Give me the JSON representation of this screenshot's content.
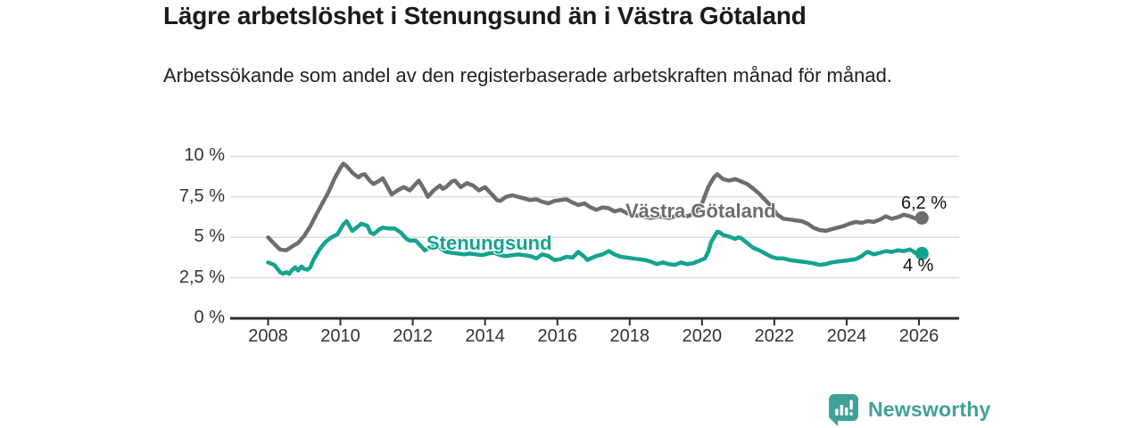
{
  "header": {
    "title": "Lägre arbetslöshet i Stenungsund än i Västra Götaland",
    "subtitle": "Arbetssökande som andel av den registerbaserade arbetskraften månad för månad."
  },
  "chart_data": {
    "type": "line",
    "title": "Lägre arbetslöshet i Stenungsund än i Västra Götaland",
    "xlabel": "",
    "ylabel": "",
    "grid": true,
    "legend_position": "inline-on-line",
    "x_axis": {
      "ticks": [
        2008,
        2010,
        2012,
        2014,
        2016,
        2018,
        2020,
        2022,
        2024,
        2026
      ],
      "unit": "year"
    },
    "y_axis": {
      "range": [
        0,
        10.5
      ],
      "ticks": [
        {
          "value": 0,
          "label": "0 %"
        },
        {
          "value": 2.5,
          "label": "2,5 %"
        },
        {
          "value": 5,
          "label": "5 %"
        },
        {
          "value": 7.5,
          "label": "7,5 %"
        },
        {
          "value": 10,
          "label": "10 %"
        }
      ]
    },
    "colors": {
      "grid": "#d9d9d9",
      "axis": "#2d2d2d",
      "value_label": "#111111"
    },
    "series": [
      {
        "name": "Västra Götaland",
        "color": "#6d6d70",
        "end_label": "6,2 %",
        "end_value": 6.2,
        "points": [
          [
            2008.0,
            5.0
          ],
          [
            2008.17,
            4.6
          ],
          [
            2008.33,
            4.25
          ],
          [
            2008.5,
            4.2
          ],
          [
            2008.67,
            4.45
          ],
          [
            2008.83,
            4.65
          ],
          [
            2009.0,
            5.1
          ],
          [
            2009.17,
            5.7
          ],
          [
            2009.33,
            6.4
          ],
          [
            2009.5,
            7.1
          ],
          [
            2009.67,
            7.8
          ],
          [
            2009.83,
            8.6
          ],
          [
            2010.0,
            9.3
          ],
          [
            2010.08,
            9.55
          ],
          [
            2010.17,
            9.4
          ],
          [
            2010.33,
            9.0
          ],
          [
            2010.5,
            8.7
          ],
          [
            2010.58,
            8.85
          ],
          [
            2010.67,
            8.9
          ],
          [
            2010.83,
            8.45
          ],
          [
            2010.92,
            8.3
          ],
          [
            2011.08,
            8.5
          ],
          [
            2011.17,
            8.65
          ],
          [
            2011.33,
            8.0
          ],
          [
            2011.42,
            7.65
          ],
          [
            2011.58,
            7.9
          ],
          [
            2011.75,
            8.1
          ],
          [
            2011.92,
            7.9
          ],
          [
            2012.08,
            8.3
          ],
          [
            2012.17,
            8.5
          ],
          [
            2012.33,
            7.9
          ],
          [
            2012.42,
            7.5
          ],
          [
            2012.58,
            7.9
          ],
          [
            2012.75,
            8.2
          ],
          [
            2012.83,
            8.0
          ],
          [
            2012.92,
            8.1
          ],
          [
            2013.08,
            8.45
          ],
          [
            2013.17,
            8.5
          ],
          [
            2013.33,
            8.1
          ],
          [
            2013.5,
            8.35
          ],
          [
            2013.67,
            8.2
          ],
          [
            2013.83,
            7.9
          ],
          [
            2014.0,
            8.1
          ],
          [
            2014.17,
            7.7
          ],
          [
            2014.33,
            7.3
          ],
          [
            2014.42,
            7.25
          ],
          [
            2014.58,
            7.5
          ],
          [
            2014.75,
            7.6
          ],
          [
            2014.92,
            7.5
          ],
          [
            2015.08,
            7.4
          ],
          [
            2015.25,
            7.3
          ],
          [
            2015.42,
            7.35
          ],
          [
            2015.58,
            7.2
          ],
          [
            2015.75,
            7.1
          ],
          [
            2015.92,
            7.25
          ],
          [
            2016.08,
            7.3
          ],
          [
            2016.25,
            7.35
          ],
          [
            2016.42,
            7.15
          ],
          [
            2016.58,
            7.0
          ],
          [
            2016.75,
            7.1
          ],
          [
            2016.92,
            6.85
          ],
          [
            2017.08,
            6.7
          ],
          [
            2017.25,
            6.85
          ],
          [
            2017.42,
            6.8
          ],
          [
            2017.58,
            6.6
          ],
          [
            2017.75,
            6.7
          ],
          [
            2017.92,
            6.5
          ],
          [
            2018.08,
            6.4
          ],
          [
            2018.33,
            6.3
          ],
          [
            2018.58,
            6.2
          ],
          [
            2018.83,
            6.3
          ],
          [
            2019.08,
            6.2
          ],
          [
            2019.33,
            6.35
          ],
          [
            2019.58,
            6.3
          ],
          [
            2019.83,
            6.5
          ],
          [
            2020.0,
            7.1
          ],
          [
            2020.17,
            8.1
          ],
          [
            2020.33,
            8.7
          ],
          [
            2020.42,
            8.9
          ],
          [
            2020.58,
            8.6
          ],
          [
            2020.75,
            8.5
          ],
          [
            2020.92,
            8.6
          ],
          [
            2021.08,
            8.45
          ],
          [
            2021.25,
            8.3
          ],
          [
            2021.42,
            8.0
          ],
          [
            2021.58,
            7.7
          ],
          [
            2021.75,
            7.3
          ],
          [
            2021.92,
            6.9
          ],
          [
            2022.08,
            6.4
          ],
          [
            2022.25,
            6.15
          ],
          [
            2022.42,
            6.1
          ],
          [
            2022.58,
            6.05
          ],
          [
            2022.75,
            6.0
          ],
          [
            2022.92,
            5.85
          ],
          [
            2023.08,
            5.6
          ],
          [
            2023.25,
            5.45
          ],
          [
            2023.42,
            5.4
          ],
          [
            2023.58,
            5.5
          ],
          [
            2023.75,
            5.6
          ],
          [
            2023.92,
            5.7
          ],
          [
            2024.08,
            5.85
          ],
          [
            2024.25,
            5.95
          ],
          [
            2024.42,
            5.9
          ],
          [
            2024.58,
            6.0
          ],
          [
            2024.75,
            5.95
          ],
          [
            2024.92,
            6.1
          ],
          [
            2025.08,
            6.3
          ],
          [
            2025.25,
            6.15
          ],
          [
            2025.42,
            6.25
          ],
          [
            2025.58,
            6.4
          ],
          [
            2025.75,
            6.3
          ],
          [
            2025.92,
            6.15
          ],
          [
            2026.08,
            6.2
          ]
        ]
      },
      {
        "name": "Stenungsund",
        "color": "#14a38f",
        "end_label": "4 %",
        "end_value": 4.0,
        "points": [
          [
            2008.0,
            3.45
          ],
          [
            2008.17,
            3.3
          ],
          [
            2008.33,
            2.85
          ],
          [
            2008.42,
            2.75
          ],
          [
            2008.5,
            2.85
          ],
          [
            2008.58,
            2.75
          ],
          [
            2008.67,
            3.0
          ],
          [
            2008.75,
            3.15
          ],
          [
            2008.83,
            2.95
          ],
          [
            2008.92,
            3.2
          ],
          [
            2009.0,
            3.05
          ],
          [
            2009.08,
            3.0
          ],
          [
            2009.17,
            3.15
          ],
          [
            2009.25,
            3.6
          ],
          [
            2009.42,
            4.25
          ],
          [
            2009.58,
            4.7
          ],
          [
            2009.75,
            5.0
          ],
          [
            2009.92,
            5.2
          ],
          [
            2010.08,
            5.8
          ],
          [
            2010.17,
            6.0
          ],
          [
            2010.33,
            5.4
          ],
          [
            2010.5,
            5.7
          ],
          [
            2010.58,
            5.85
          ],
          [
            2010.75,
            5.7
          ],
          [
            2010.83,
            5.3
          ],
          [
            2010.92,
            5.2
          ],
          [
            2011.08,
            5.5
          ],
          [
            2011.17,
            5.6
          ],
          [
            2011.33,
            5.55
          ],
          [
            2011.5,
            5.55
          ],
          [
            2011.67,
            5.3
          ],
          [
            2011.83,
            4.9
          ],
          [
            2011.92,
            4.8
          ],
          [
            2012.08,
            4.8
          ],
          [
            2012.25,
            4.4
          ],
          [
            2012.33,
            4.2
          ],
          [
            2012.5,
            4.4
          ],
          [
            2012.58,
            4.5
          ],
          [
            2012.75,
            4.35
          ],
          [
            2012.92,
            4.1
          ],
          [
            2013.08,
            4.05
          ],
          [
            2013.25,
            4.0
          ],
          [
            2013.42,
            3.95
          ],
          [
            2013.58,
            4.0
          ],
          [
            2013.75,
            3.95
          ],
          [
            2013.92,
            3.9
          ],
          [
            2014.08,
            4.0
          ],
          [
            2014.25,
            4.05
          ],
          [
            2014.42,
            3.9
          ],
          [
            2014.58,
            3.85
          ],
          [
            2014.75,
            3.9
          ],
          [
            2014.92,
            3.95
          ],
          [
            2015.08,
            3.9
          ],
          [
            2015.25,
            3.85
          ],
          [
            2015.42,
            3.7
          ],
          [
            2015.58,
            3.95
          ],
          [
            2015.75,
            3.85
          ],
          [
            2015.92,
            3.6
          ],
          [
            2016.08,
            3.65
          ],
          [
            2016.25,
            3.8
          ],
          [
            2016.42,
            3.75
          ],
          [
            2016.58,
            4.1
          ],
          [
            2016.75,
            3.8
          ],
          [
            2016.83,
            3.6
          ],
          [
            2016.92,
            3.7
          ],
          [
            2017.08,
            3.85
          ],
          [
            2017.25,
            3.95
          ],
          [
            2017.42,
            4.15
          ],
          [
            2017.58,
            3.95
          ],
          [
            2017.75,
            3.8
          ],
          [
            2017.92,
            3.75
          ],
          [
            2018.08,
            3.7
          ],
          [
            2018.25,
            3.65
          ],
          [
            2018.42,
            3.6
          ],
          [
            2018.58,
            3.5
          ],
          [
            2018.75,
            3.35
          ],
          [
            2018.92,
            3.45
          ],
          [
            2019.08,
            3.35
          ],
          [
            2019.25,
            3.3
          ],
          [
            2019.42,
            3.45
          ],
          [
            2019.58,
            3.35
          ],
          [
            2019.75,
            3.4
          ],
          [
            2019.92,
            3.55
          ],
          [
            2020.08,
            3.7
          ],
          [
            2020.17,
            4.1
          ],
          [
            2020.25,
            4.7
          ],
          [
            2020.42,
            5.35
          ],
          [
            2020.5,
            5.3
          ],
          [
            2020.58,
            5.15
          ],
          [
            2020.75,
            5.05
          ],
          [
            2020.92,
            4.9
          ],
          [
            2021.0,
            5.0
          ],
          [
            2021.08,
            4.95
          ],
          [
            2021.25,
            4.65
          ],
          [
            2021.42,
            4.35
          ],
          [
            2021.58,
            4.2
          ],
          [
            2021.75,
            4.0
          ],
          [
            2021.92,
            3.8
          ],
          [
            2022.08,
            3.7
          ],
          [
            2022.25,
            3.7
          ],
          [
            2022.42,
            3.6
          ],
          [
            2022.58,
            3.55
          ],
          [
            2022.75,
            3.5
          ],
          [
            2022.92,
            3.45
          ],
          [
            2023.08,
            3.4
          ],
          [
            2023.25,
            3.3
          ],
          [
            2023.42,
            3.35
          ],
          [
            2023.58,
            3.45
          ],
          [
            2023.75,
            3.5
          ],
          [
            2023.92,
            3.55
          ],
          [
            2024.08,
            3.6
          ],
          [
            2024.25,
            3.65
          ],
          [
            2024.42,
            3.85
          ],
          [
            2024.5,
            4.0
          ],
          [
            2024.58,
            4.1
          ],
          [
            2024.75,
            3.95
          ],
          [
            2024.92,
            4.05
          ],
          [
            2025.08,
            4.15
          ],
          [
            2025.25,
            4.1
          ],
          [
            2025.42,
            4.2
          ],
          [
            2025.58,
            4.15
          ],
          [
            2025.75,
            4.25
          ],
          [
            2025.83,
            4.15
          ],
          [
            2025.92,
            4.0
          ],
          [
            2026.0,
            3.9
          ],
          [
            2026.08,
            4.0
          ]
        ]
      }
    ]
  },
  "footer": {
    "brand": "Newsworthy",
    "brand_color": "#41a09a"
  }
}
